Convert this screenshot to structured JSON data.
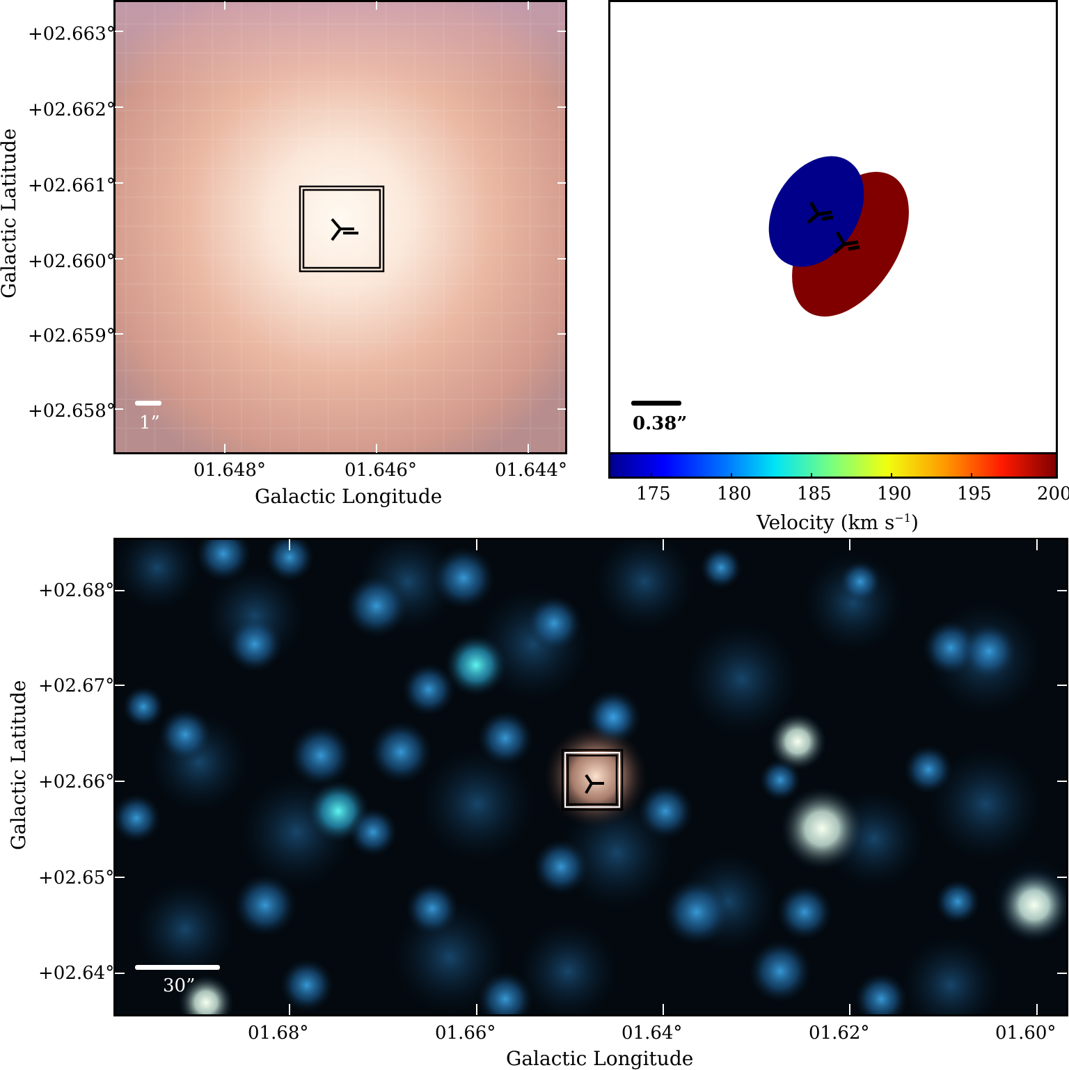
{
  "panels": {
    "top_left": {
      "y_ticks": [
        "+02.663°",
        "+02.662°",
        "+02.661°",
        "+02.660°",
        "+02.659°",
        "+02.658°"
      ],
      "x_ticks": [
        "01.648°",
        "01.646°",
        "01.644°"
      ],
      "xlabel": "Galactic Longitude",
      "ylabel": "Galactic Latitude",
      "scale_bar": "1”"
    },
    "top_right": {
      "scale_bar": "0.38”",
      "colorbar": {
        "ticks": [
          "175",
          "180",
          "185",
          "190",
          "195",
          "200"
        ],
        "label": "Velocity (km s",
        "label_sup": "−1",
        "label_end": ")"
      },
      "components": [
        {
          "velocity_kms": 174,
          "color": "#00008b"
        },
        {
          "velocity_kms": 200,
          "color": "#800000"
        }
      ]
    },
    "bottom": {
      "y_ticks": [
        "+02.68°",
        "+02.67°",
        "+02.66°",
        "+02.65°",
        "+02.64°"
      ],
      "x_ticks": [
        "01.68°",
        "01.66°",
        "01.64°",
        "01.62°",
        "01.60°"
      ],
      "xlabel": "Galactic Longitude",
      "ylabel": "Galactic Latitude",
      "scale_bar": "30”"
    }
  }
}
